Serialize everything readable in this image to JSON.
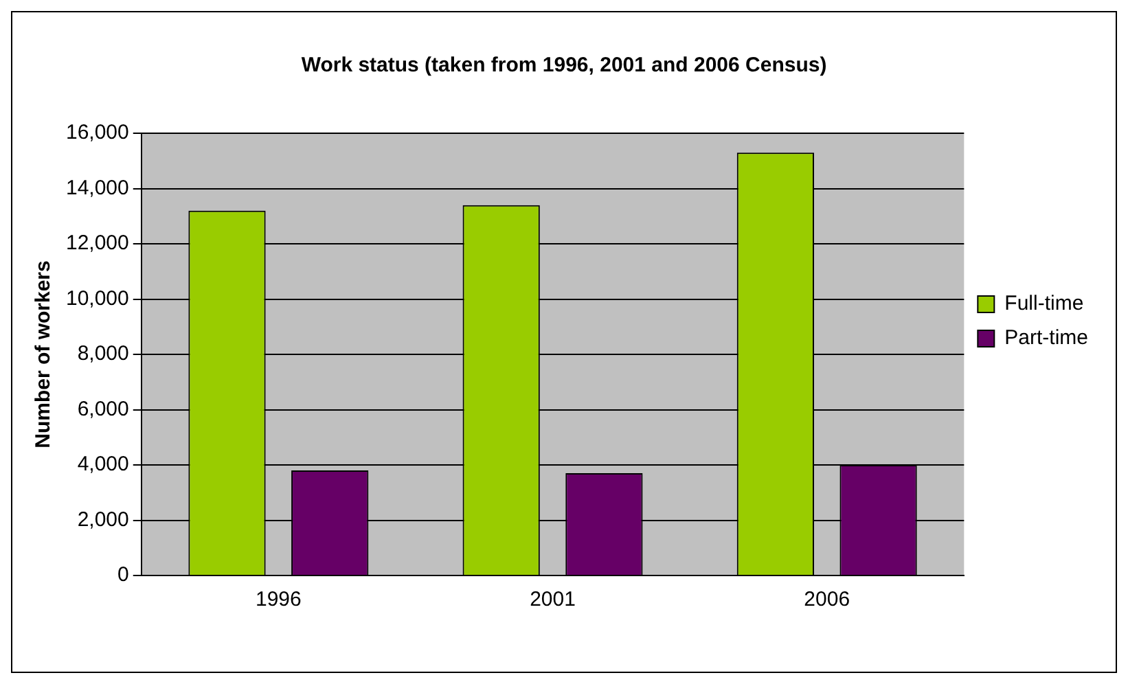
{
  "chart_data": {
    "type": "bar",
    "title": "Work status (taken from 1996, 2001 and 2006 Census)",
    "ylabel": "Number of workers",
    "categories": [
      "1996",
      "2001",
      "2006"
    ],
    "series": [
      {
        "name": "Full-time",
        "color": "#99cc00",
        "values": [
          13200,
          13400,
          15300
        ]
      },
      {
        "name": "Part-time",
        "color": "#660066",
        "values": [
          3800,
          3700,
          4000
        ]
      }
    ],
    "ylim": [
      0,
      16000
    ],
    "yticks": [
      {
        "value": 0,
        "label": "0"
      },
      {
        "value": 2000,
        "label": "2,000"
      },
      {
        "value": 4000,
        "label": "4,000"
      },
      {
        "value": 6000,
        "label": "6,000"
      },
      {
        "value": 8000,
        "label": "8,000"
      },
      {
        "value": 10000,
        "label": "10,000"
      },
      {
        "value": 12000,
        "label": "12,000"
      },
      {
        "value": 14000,
        "label": "14,000"
      },
      {
        "value": 16000,
        "label": "16,000"
      }
    ],
    "grid": "y",
    "legend": "right"
  }
}
